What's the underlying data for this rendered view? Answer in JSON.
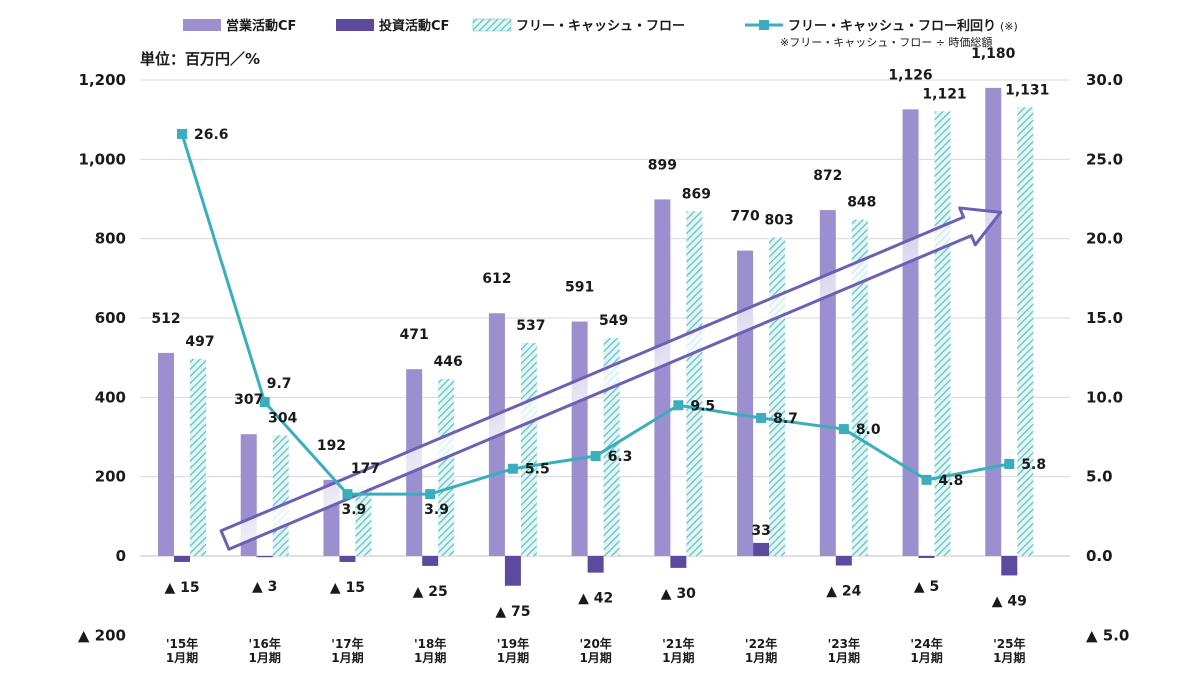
{
  "chart_data": {
    "type": "bar",
    "unit_label": "単位：百万円／%",
    "categories": [
      [
        "'15年",
        "1月期"
      ],
      [
        "'16年",
        "1月期"
      ],
      [
        "'17年",
        "1月期"
      ],
      [
        "'18年",
        "1月期"
      ],
      [
        "'19年",
        "1月期"
      ],
      [
        "'20年",
        "1月期"
      ],
      [
        "'21年",
        "1月期"
      ],
      [
        "'22年",
        "1月期"
      ],
      [
        "'23年",
        "1月期"
      ],
      [
        "'24年",
        "1月期"
      ],
      [
        "'25年",
        "1月期"
      ]
    ],
    "y_left": {
      "range": [
        -200,
        1200
      ],
      "ticks": [
        -200,
        0,
        200,
        400,
        600,
        800,
        1000,
        1200
      ],
      "tick_labels": [
        "▲ 200",
        "0",
        "200",
        "400",
        "600",
        "800",
        "1,000",
        "1,200"
      ]
    },
    "y_right": {
      "range": [
        -5,
        30
      ],
      "ticks": [
        -5,
        0,
        5,
        10,
        15,
        20,
        25,
        30
      ],
      "tick_labels": [
        "▲ 5.0",
        "0.0",
        "5.0",
        "10.0",
        "15.0",
        "20.0",
        "25.0",
        "30.0"
      ]
    },
    "series": [
      {
        "name": "営業活動CF",
        "kind": "bar",
        "axis": "left",
        "color": "#9b8fd0",
        "values": [
          512,
          307,
          192,
          471,
          612,
          591,
          899,
          770,
          872,
          1126,
          1180
        ],
        "labels": [
          "512",
          "307",
          "192",
          "471",
          "612",
          "591",
          "899",
          "770",
          "872",
          "1,126",
          "1,180"
        ]
      },
      {
        "name": "投資活動CF",
        "kind": "bar",
        "axis": "left",
        "color": "#5b4a9e",
        "values": [
          -15,
          -3,
          -15,
          -25,
          -75,
          -42,
          -30,
          33,
          -24,
          -5,
          -49
        ],
        "labels": [
          "▲ 15",
          "▲ 3",
          "▲ 15",
          "▲ 25",
          "▲ 75",
          "▲ 42",
          "▲ 30",
          "33",
          "▲ 24",
          "▲ 5",
          "▲ 49"
        ]
      },
      {
        "name": "フリー・キャッシュ・フロー",
        "kind": "bar",
        "axis": "left",
        "color": "#5bbfc4",
        "pattern": "hatched",
        "values": [
          497,
          304,
          177,
          446,
          537,
          549,
          869,
          803,
          848,
          1121,
          1131
        ],
        "labels": [
          "497",
          "304",
          "177",
          "446",
          "537",
          "549",
          "869",
          "803",
          "848",
          "1,121",
          "1,131"
        ]
      },
      {
        "name": "フリー・キャッシュ・フロー利回り",
        "kind": "line",
        "axis": "right",
        "color": "#3aaebd",
        "values": [
          26.6,
          9.7,
          3.9,
          3.9,
          5.5,
          6.3,
          9.5,
          8.7,
          8.0,
          4.8,
          5.8
        ],
        "labels": [
          "26.6",
          "9.7",
          "3.9",
          "3.9",
          "5.5",
          "6.3",
          "9.5",
          "8.7",
          "8.0",
          "4.8",
          "5.8"
        ]
      }
    ],
    "legend": {
      "position": "top",
      "items": [
        "営業活動CF",
        "投資活動CF",
        "フリー・キャッシュ・フロー",
        "フリー・キャッシュ・フロー利回り"
      ],
      "yield_suffix": "(※)",
      "note": "※フリー・キャッシュ・フロー ÷ 時価総額"
    },
    "grid": "horizontal",
    "annotation": "upward trend arrow"
  }
}
